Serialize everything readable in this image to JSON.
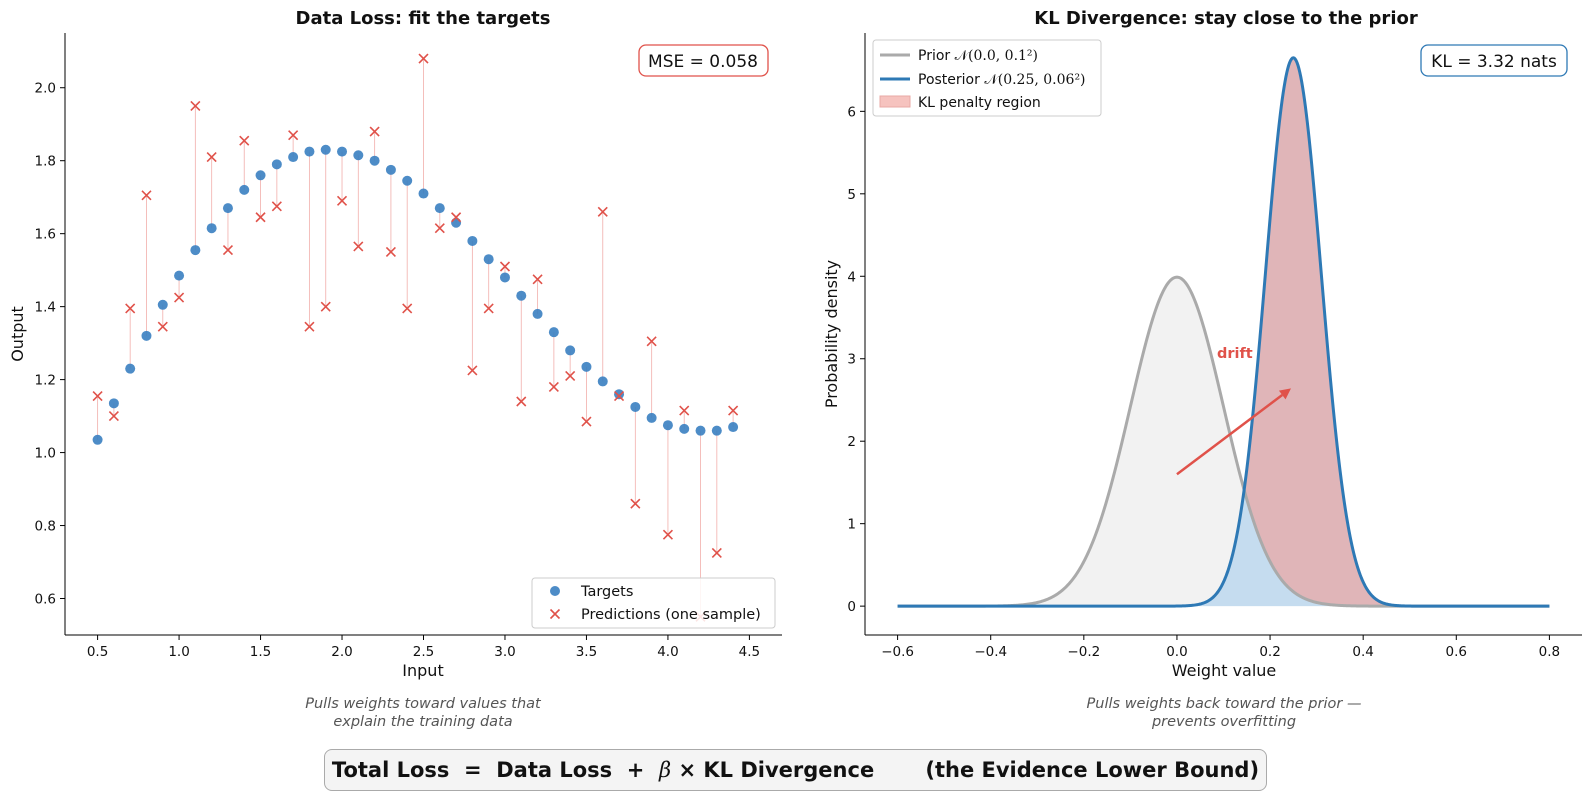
{
  "chart_data": [
    {
      "type": "scatter",
      "title": "Data Loss: fit the targets",
      "xlabel": "Input",
      "ylabel": "Output",
      "xlim": [
        0.3,
        4.7
      ],
      "ylim": [
        0.5,
        2.15
      ],
      "xticks": [
        "0.5",
        "1.0",
        "1.5",
        "2.0",
        "2.5",
        "3.0",
        "3.5",
        "4.0",
        "4.5"
      ],
      "yticks": [
        "0.6",
        "0.8",
        "1.0",
        "1.2",
        "1.4",
        "1.6",
        "1.8",
        "2.0"
      ],
      "grid": false,
      "legend_position": "lower-right",
      "annotation": "MSE = 0.058",
      "x": [
        0.5,
        0.6,
        0.7,
        0.8,
        0.9,
        1.0,
        1.1,
        1.2,
        1.3,
        1.4,
        1.5,
        1.6,
        1.7,
        1.8,
        1.9,
        2.0,
        2.1,
        2.2,
        2.3,
        2.4,
        2.5,
        2.6,
        2.7,
        2.8,
        2.9,
        3.0,
        3.1,
        3.2,
        3.3,
        3.4,
        3.5,
        3.6,
        3.7,
        3.8,
        3.9,
        4.0,
        4.1,
        4.2,
        4.3,
        4.4
      ],
      "series": [
        {
          "name": "Targets",
          "marker": "circle",
          "color": "#3a7fc1",
          "values": [
            1.035,
            1.135,
            1.23,
            1.32,
            1.405,
            1.485,
            1.555,
            1.615,
            1.67,
            1.72,
            1.76,
            1.79,
            1.81,
            1.825,
            1.83,
            1.825,
            1.815,
            1.8,
            1.775,
            1.745,
            1.71,
            1.67,
            1.63,
            1.58,
            1.53,
            1.48,
            1.43,
            1.38,
            1.33,
            1.28,
            1.235,
            1.195,
            1.16,
            1.125,
            1.095,
            1.075,
            1.065,
            1.06,
            1.06,
            1.07
          ]
        },
        {
          "name": "Predictions (one sample)",
          "marker": "x",
          "color": "#e0524a",
          "values": [
            1.155,
            1.1,
            1.395,
            1.705,
            1.345,
            1.425,
            1.95,
            1.81,
            1.555,
            1.855,
            1.645,
            1.675,
            1.87,
            1.345,
            1.4,
            1.69,
            1.565,
            1.88,
            1.55,
            1.395,
            2.08,
            1.615,
            1.645,
            1.225,
            1.395,
            1.51,
            1.14,
            1.475,
            1.18,
            1.21,
            1.085,
            1.66,
            1.155,
            0.86,
            1.305,
            0.775,
            1.115,
            0.55,
            0.725,
            1.115
          ]
        }
      ]
    },
    {
      "type": "line",
      "title": "KL Divergence: stay close to the prior",
      "xlabel": "Weight value",
      "ylabel": "Probability density",
      "xlim": [
        -0.67,
        0.87
      ],
      "ylim": [
        -0.35,
        6.95
      ],
      "xticks": [
        "−0.6",
        "−0.4",
        "−0.2",
        "0.0",
        "0.2",
        "0.4",
        "0.6",
        "0.8"
      ],
      "yticks": [
        "0",
        "1",
        "2",
        "3",
        "4",
        "5",
        "6"
      ],
      "grid": false,
      "legend_position": "upper-left",
      "annotation": "KL = 3.32 nats",
      "arrow_label": "drift",
      "arrow": {
        "from": [
          0.0,
          1.6
        ],
        "to": [
          0.245,
          2.64
        ]
      },
      "series": [
        {
          "name": "Prior",
          "name_math": "𝒩(0.0, 0.1²)",
          "distribution": "normal",
          "mean": 0.0,
          "std": 0.1,
          "x_range": [
            -0.6,
            0.8
          ],
          "color": "#aaaaaa",
          "fill": "#f2f2f2"
        },
        {
          "name": "Posterior",
          "name_math": "𝒩(0.25, 0.06²)",
          "distribution": "normal",
          "mean": 0.25,
          "std": 0.06,
          "x_range": [
            -0.6,
            0.8
          ],
          "color": "#2e79b5",
          "fill": "#c5dcef"
        },
        {
          "name": "KL penalty region",
          "type": "area",
          "color": "#f6c3bf"
        }
      ]
    }
  ],
  "captions": {
    "left_line1": "Pulls weights toward values that",
    "left_line2": "explain the training data",
    "right_line1": "Pulls weights back toward the prior —",
    "right_line2": "prevents overfitting"
  },
  "formula": {
    "part1": "Total Loss  =  Data Loss  +  ",
    "beta": "β",
    "part2": " × KL Divergence       (the Evidence Lower Bound)"
  }
}
